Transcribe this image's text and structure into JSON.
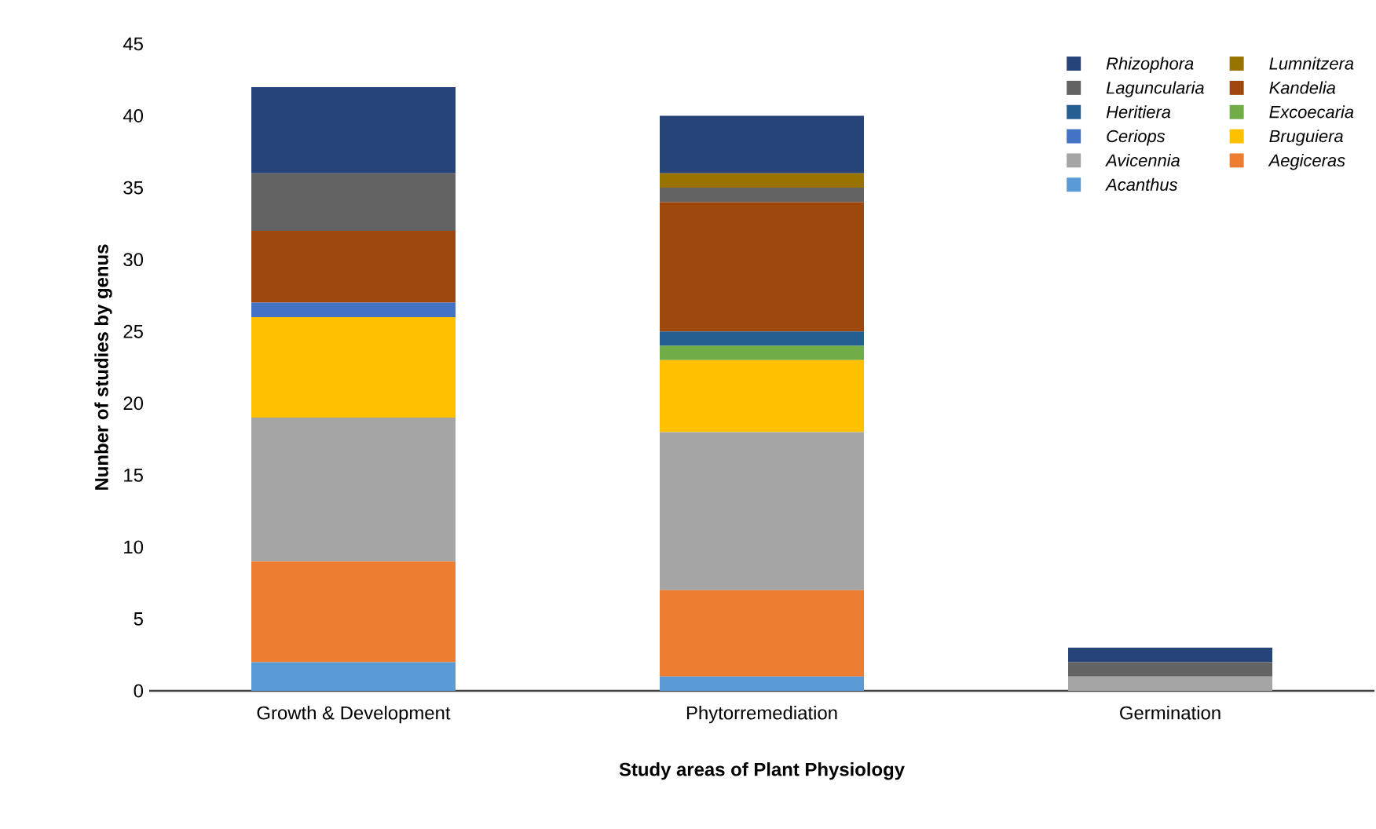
{
  "chart_data": {
    "type": "bar",
    "stacked": true,
    "xlabel": "Study areas of Plant Physiology",
    "ylabel": "Nunber  of studies by genus",
    "categories": [
      "Growth & Development",
      "Phytorremediation",
      "Germination"
    ],
    "ylim": [
      0,
      45
    ],
    "yticks": [
      0,
      5,
      10,
      15,
      20,
      25,
      30,
      35,
      40,
      45
    ],
    "legend": "top right",
    "series": [
      {
        "name": "Acanthus",
        "color": "#5b9bd5",
        "values": [
          2,
          1,
          0
        ]
      },
      {
        "name": "Aegiceras",
        "color": "#ed7d31",
        "values": [
          7,
          6,
          0
        ]
      },
      {
        "name": "Avicennia",
        "color": "#a5a5a5",
        "values": [
          10,
          11,
          1
        ]
      },
      {
        "name": "Bruguiera",
        "color": "#ffc000",
        "values": [
          7,
          5,
          0
        ]
      },
      {
        "name": "Ceriops",
        "color": "#4472c4",
        "values": [
          1,
          0,
          0
        ]
      },
      {
        "name": "Excoecaria",
        "color": "#70ad47",
        "values": [
          0,
          1,
          0
        ]
      },
      {
        "name": "Heritiera",
        "color": "#255e91",
        "values": [
          0,
          1,
          0
        ]
      },
      {
        "name": "Kandelia",
        "color": "#9e480e",
        "values": [
          5,
          9,
          0
        ]
      },
      {
        "name": "Laguncularia",
        "color": "#636363",
        "values": [
          4,
          1,
          1
        ]
      },
      {
        "name": "Lumnitzera",
        "color": "#997300",
        "values": [
          0,
          1,
          0
        ]
      },
      {
        "name": "Rhizophora",
        "color": "#264478",
        "values": [
          6,
          4,
          1
        ]
      }
    ]
  }
}
